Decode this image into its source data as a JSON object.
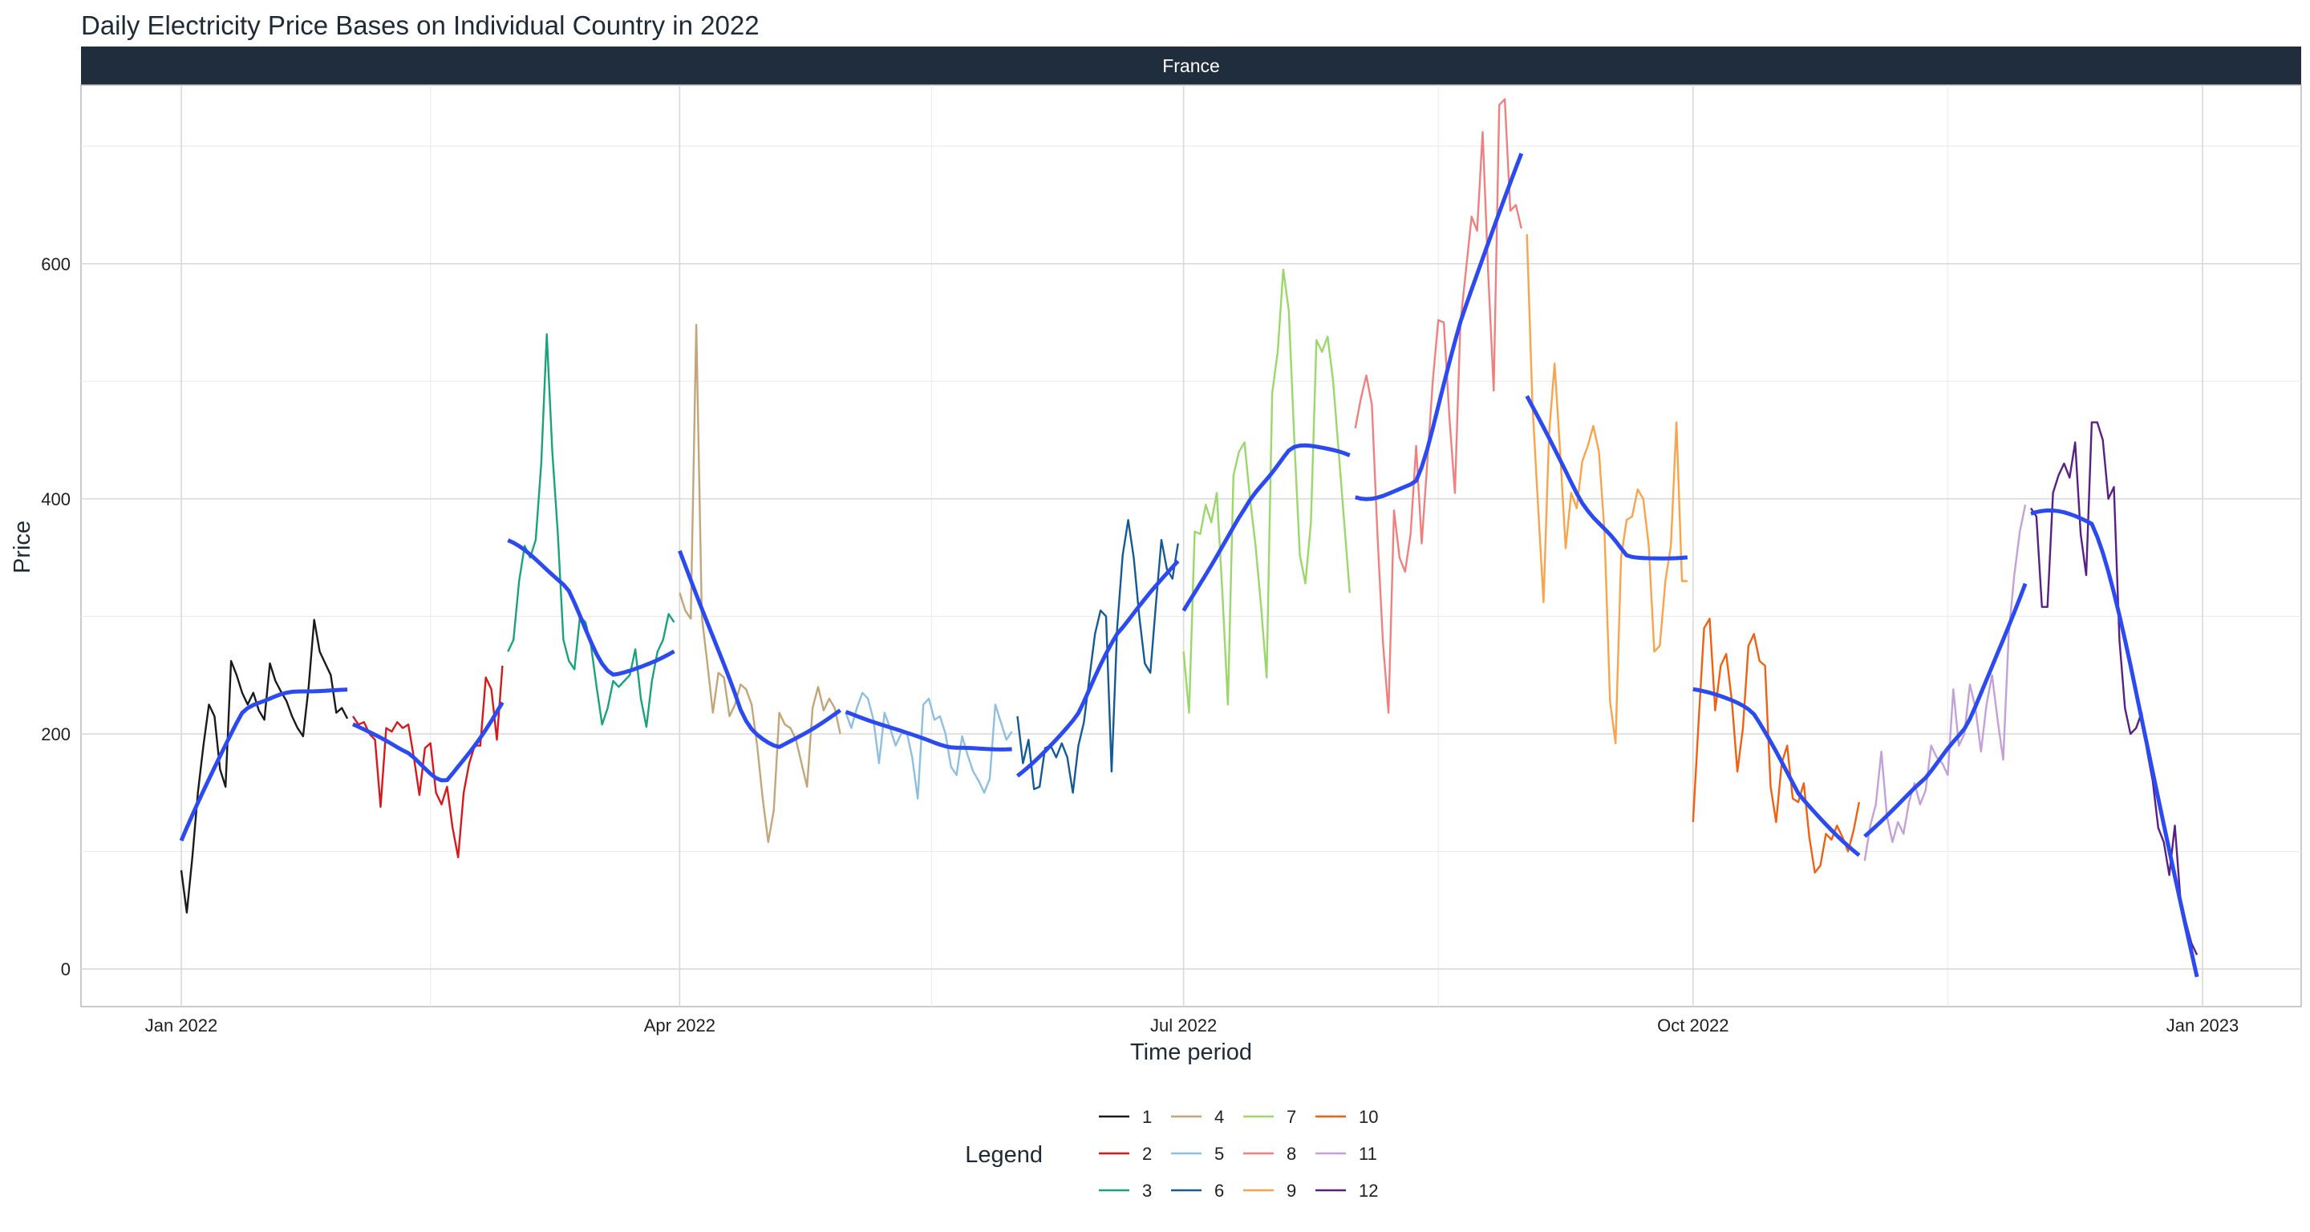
{
  "chart_data": {
    "type": "line",
    "title": "Daily Electricity Price Bases on Individual Country in 2022",
    "facet": "France",
    "xlabel": "Time period",
    "ylabel": "Price",
    "x_ticks": [
      "Jan 2022",
      "Apr 2022",
      "Jul 2022",
      "Oct 2022",
      "Jan 2023"
    ],
    "y_ticks": [
      "0",
      "200",
      "400",
      "600"
    ],
    "ylim": [
      -32,
      752
    ],
    "grid": true,
    "legend": {
      "title": "Legend",
      "position": "bottom"
    },
    "smooth_color": "#2b4bf0",
    "series": [
      {
        "name": "1",
        "color": "#1a1a1a",
        "x": [
          "2022-01-01",
          "2022-01-02",
          "2022-01-03",
          "2022-01-04",
          "2022-01-05",
          "2022-01-06",
          "2022-01-07",
          "2022-01-08",
          "2022-01-09",
          "2022-01-10",
          "2022-01-11",
          "2022-01-12",
          "2022-01-13",
          "2022-01-14",
          "2022-01-15",
          "2022-01-16",
          "2022-01-17",
          "2022-01-18",
          "2022-01-19",
          "2022-01-20",
          "2022-01-21",
          "2022-01-22",
          "2022-01-23",
          "2022-01-24",
          "2022-01-25",
          "2022-01-26",
          "2022-01-27",
          "2022-01-28",
          "2022-01-29",
          "2022-01-30",
          "2022-01-31"
        ],
        "values": [
          84,
          48,
          95,
          150,
          190,
          225,
          215,
          170,
          155,
          262,
          250,
          235,
          225,
          235,
          220,
          212,
          260,
          245,
          236,
          228,
          215,
          205,
          198,
          240,
          297,
          270,
          260,
          250,
          218,
          222,
          213
        ]
      },
      {
        "name": "2",
        "color": "#d7191c",
        "x": [
          "2022-02-01",
          "2022-02-02",
          "2022-02-03",
          "2022-02-04",
          "2022-02-05",
          "2022-02-06",
          "2022-02-07",
          "2022-02-08",
          "2022-02-09",
          "2022-02-10",
          "2022-02-11",
          "2022-02-12",
          "2022-02-13",
          "2022-02-14",
          "2022-02-15",
          "2022-02-16",
          "2022-02-17",
          "2022-02-18",
          "2022-02-19",
          "2022-02-20",
          "2022-02-21",
          "2022-02-22",
          "2022-02-23",
          "2022-02-24",
          "2022-02-25",
          "2022-02-26",
          "2022-02-27",
          "2022-02-28"
        ],
        "values": [
          215,
          208,
          210,
          200,
          195,
          138,
          205,
          202,
          210,
          205,
          208,
          180,
          148,
          188,
          192,
          150,
          140,
          155,
          120,
          95,
          150,
          175,
          190,
          190,
          248,
          238,
          195,
          258
        ]
      },
      {
        "name": "3",
        "color": "#1aa37a",
        "x": [
          "2022-03-01",
          "2022-03-02",
          "2022-03-03",
          "2022-03-04",
          "2022-03-05",
          "2022-03-06",
          "2022-03-07",
          "2022-03-08",
          "2022-03-09",
          "2022-03-10",
          "2022-03-11",
          "2022-03-12",
          "2022-03-13",
          "2022-03-14",
          "2022-03-15",
          "2022-03-16",
          "2022-03-17",
          "2022-03-18",
          "2022-03-19",
          "2022-03-20",
          "2022-03-21",
          "2022-03-22",
          "2022-03-23",
          "2022-03-24",
          "2022-03-25",
          "2022-03-26",
          "2022-03-27",
          "2022-03-28",
          "2022-03-29",
          "2022-03-30",
          "2022-03-31"
        ],
        "values": [
          270,
          280,
          330,
          360,
          350,
          365,
          430,
          540,
          440,
          370,
          280,
          262,
          255,
          300,
          295,
          275,
          240,
          208,
          222,
          245,
          240,
          245,
          250,
          272,
          230,
          206,
          245,
          270,
          280,
          302,
          295
        ]
      },
      {
        "name": "4",
        "color": "#c2a679",
        "x": [
          "2022-04-01",
          "2022-04-02",
          "2022-04-03",
          "2022-04-04",
          "2022-04-05",
          "2022-04-06",
          "2022-04-07",
          "2022-04-08",
          "2022-04-09",
          "2022-04-10",
          "2022-04-11",
          "2022-04-12",
          "2022-04-13",
          "2022-04-14",
          "2022-04-15",
          "2022-04-16",
          "2022-04-17",
          "2022-04-18",
          "2022-04-19",
          "2022-04-20",
          "2022-04-21",
          "2022-04-22",
          "2022-04-23",
          "2022-04-24",
          "2022-04-25",
          "2022-04-26",
          "2022-04-27",
          "2022-04-28",
          "2022-04-29",
          "2022-04-30"
        ],
        "values": [
          320,
          305,
          298,
          548,
          300,
          260,
          218,
          252,
          248,
          215,
          225,
          242,
          238,
          225,
          190,
          145,
          108,
          135,
          218,
          208,
          205,
          195,
          175,
          155,
          222,
          240,
          220,
          230,
          222,
          200
        ]
      },
      {
        "name": "5",
        "color": "#8fbfe0",
        "x": [
          "2022-05-01",
          "2022-05-02",
          "2022-05-03",
          "2022-05-04",
          "2022-05-05",
          "2022-05-06",
          "2022-05-07",
          "2022-05-08",
          "2022-05-09",
          "2022-05-10",
          "2022-05-11",
          "2022-05-12",
          "2022-05-13",
          "2022-05-14",
          "2022-05-15",
          "2022-05-16",
          "2022-05-17",
          "2022-05-18",
          "2022-05-19",
          "2022-05-20",
          "2022-05-21",
          "2022-05-22",
          "2022-05-23",
          "2022-05-24",
          "2022-05-25",
          "2022-05-26",
          "2022-05-27",
          "2022-05-28",
          "2022-05-29",
          "2022-05-30",
          "2022-05-31"
        ],
        "values": [
          218,
          205,
          222,
          235,
          230,
          212,
          175,
          218,
          205,
          190,
          200,
          202,
          180,
          145,
          225,
          230,
          212,
          215,
          200,
          172,
          165,
          198,
          182,
          168,
          160,
          150,
          162,
          225,
          210,
          195,
          202
        ]
      },
      {
        "name": "6",
        "color": "#145a96",
        "x": [
          "2022-06-01",
          "2022-06-02",
          "2022-06-03",
          "2022-06-04",
          "2022-06-05",
          "2022-06-06",
          "2022-06-07",
          "2022-06-08",
          "2022-06-09",
          "2022-06-10",
          "2022-06-11",
          "2022-06-12",
          "2022-06-13",
          "2022-06-14",
          "2022-06-15",
          "2022-06-16",
          "2022-06-17",
          "2022-06-18",
          "2022-06-19",
          "2022-06-20",
          "2022-06-21",
          "2022-06-22",
          "2022-06-23",
          "2022-06-24",
          "2022-06-25",
          "2022-06-26",
          "2022-06-27",
          "2022-06-28",
          "2022-06-29",
          "2022-06-30"
        ],
        "values": [
          215,
          175,
          195,
          153,
          155,
          188,
          190,
          180,
          192,
          180,
          150,
          190,
          210,
          248,
          285,
          305,
          300,
          168,
          290,
          352,
          382,
          350,
          300,
          260,
          252,
          310,
          365,
          340,
          332,
          362
        ]
      },
      {
        "name": "7",
        "color": "#9ad86a",
        "x": [
          "2022-07-01",
          "2022-07-02",
          "2022-07-03",
          "2022-07-04",
          "2022-07-05",
          "2022-07-06",
          "2022-07-07",
          "2022-07-08",
          "2022-07-09",
          "2022-07-10",
          "2022-07-11",
          "2022-07-12",
          "2022-07-13",
          "2022-07-14",
          "2022-07-15",
          "2022-07-16",
          "2022-07-17",
          "2022-07-18",
          "2022-07-19",
          "2022-07-20",
          "2022-07-21",
          "2022-07-22",
          "2022-07-23",
          "2022-07-24",
          "2022-07-25",
          "2022-07-26",
          "2022-07-27",
          "2022-07-28",
          "2022-07-29",
          "2022-07-30",
          "2022-07-31"
        ],
        "values": [
          270,
          218,
          372,
          370,
          395,
          380,
          405,
          320,
          225,
          420,
          440,
          448,
          400,
          360,
          308,
          248,
          490,
          525,
          595,
          560,
          450,
          352,
          328,
          380,
          535,
          525,
          538,
          500,
          440,
          380,
          320
        ]
      },
      {
        "name": "8",
        "color": "#f08080",
        "x": [
          "2022-08-01",
          "2022-08-02",
          "2022-08-03",
          "2022-08-04",
          "2022-08-05",
          "2022-08-06",
          "2022-08-07",
          "2022-08-08",
          "2022-08-09",
          "2022-08-10",
          "2022-08-11",
          "2022-08-12",
          "2022-08-13",
          "2022-08-14",
          "2022-08-15",
          "2022-08-16",
          "2022-08-17",
          "2022-08-18",
          "2022-08-19",
          "2022-08-20",
          "2022-08-21",
          "2022-08-22",
          "2022-08-23",
          "2022-08-24",
          "2022-08-25",
          "2022-08-26",
          "2022-08-27",
          "2022-08-28",
          "2022-08-29",
          "2022-08-30",
          "2022-08-31"
        ],
        "values": [
          460,
          485,
          505,
          480,
          370,
          278,
          218,
          390,
          350,
          338,
          370,
          445,
          362,
          430,
          500,
          552,
          550,
          470,
          405,
          550,
          595,
          640,
          628,
          712,
          592,
          492,
          735,
          740,
          645,
          650,
          630
        ]
      },
      {
        "name": "9",
        "color": "#f9a34a",
        "x": [
          "2022-09-01",
          "2022-09-02",
          "2022-09-03",
          "2022-09-04",
          "2022-09-05",
          "2022-09-06",
          "2022-09-07",
          "2022-09-08",
          "2022-09-09",
          "2022-09-10",
          "2022-09-11",
          "2022-09-12",
          "2022-09-13",
          "2022-09-14",
          "2022-09-15",
          "2022-09-16",
          "2022-09-17",
          "2022-09-18",
          "2022-09-19",
          "2022-09-20",
          "2022-09-21",
          "2022-09-22",
          "2022-09-23",
          "2022-09-24",
          "2022-09-25",
          "2022-09-26",
          "2022-09-27",
          "2022-09-28",
          "2022-09-29",
          "2022-09-30"
        ],
        "values": [
          625,
          480,
          395,
          312,
          455,
          515,
          440,
          358,
          405,
          392,
          432,
          445,
          462,
          440,
          372,
          228,
          192,
          350,
          382,
          385,
          408,
          400,
          360,
          270,
          275,
          330,
          360,
          465,
          330,
          330
        ]
      },
      {
        "name": "10",
        "color": "#f06010",
        "x": [
          "2022-10-01",
          "2022-10-02",
          "2022-10-03",
          "2022-10-04",
          "2022-10-05",
          "2022-10-06",
          "2022-10-07",
          "2022-10-08",
          "2022-10-09",
          "2022-10-10",
          "2022-10-11",
          "2022-10-12",
          "2022-10-13",
          "2022-10-14",
          "2022-10-15",
          "2022-10-16",
          "2022-10-17",
          "2022-10-18",
          "2022-10-19",
          "2022-10-20",
          "2022-10-21",
          "2022-10-22",
          "2022-10-23",
          "2022-10-24",
          "2022-10-25",
          "2022-10-26",
          "2022-10-27",
          "2022-10-28",
          "2022-10-29",
          "2022-10-30",
          "2022-10-31"
        ],
        "values": [
          125,
          210,
          290,
          298,
          220,
          258,
          268,
          228,
          168,
          205,
          275,
          285,
          262,
          258,
          155,
          125,
          175,
          190,
          145,
          142,
          158,
          112,
          82,
          88,
          115,
          110,
          122,
          112,
          100,
          118,
          142
        ]
      },
      {
        "name": "11",
        "color": "#c3a0d8",
        "x": [
          "2022-11-01",
          "2022-11-02",
          "2022-11-03",
          "2022-11-04",
          "2022-11-05",
          "2022-11-06",
          "2022-11-07",
          "2022-11-08",
          "2022-11-09",
          "2022-11-10",
          "2022-11-11",
          "2022-11-12",
          "2022-11-13",
          "2022-11-14",
          "2022-11-15",
          "2022-11-16",
          "2022-11-17",
          "2022-11-18",
          "2022-11-19",
          "2022-11-20",
          "2022-11-21",
          "2022-11-22",
          "2022-11-23",
          "2022-11-24",
          "2022-11-25",
          "2022-11-26",
          "2022-11-27",
          "2022-11-28",
          "2022-11-29",
          "2022-11-30"
        ],
        "values": [
          92,
          122,
          140,
          185,
          130,
          108,
          125,
          115,
          142,
          158,
          140,
          152,
          190,
          180,
          175,
          165,
          238,
          190,
          200,
          242,
          222,
          185,
          225,
          250,
          212,
          178,
          285,
          335,
          372,
          395
        ]
      },
      {
        "name": "12",
        "color": "#5a1f86",
        "x": [
          "2022-12-01",
          "2022-12-02",
          "2022-12-03",
          "2022-12-04",
          "2022-12-05",
          "2022-12-06",
          "2022-12-07",
          "2022-12-08",
          "2022-12-09",
          "2022-12-10",
          "2022-12-11",
          "2022-12-12",
          "2022-12-13",
          "2022-12-14",
          "2022-12-15",
          "2022-12-16",
          "2022-12-17",
          "2022-12-18",
          "2022-12-19",
          "2022-12-20",
          "2022-12-21",
          "2022-12-22",
          "2022-12-23",
          "2022-12-24",
          "2022-12-25",
          "2022-12-26",
          "2022-12-27",
          "2022-12-28",
          "2022-12-29",
          "2022-12-30",
          "2022-12-31"
        ],
        "values": [
          392,
          385,
          308,
          308,
          405,
          420,
          430,
          418,
          448,
          370,
          335,
          465,
          465,
          450,
          400,
          410,
          280,
          222,
          200,
          205,
          218,
          185,
          160,
          120,
          108,
          80,
          122,
          60,
          40,
          22,
          12
        ]
      }
    ]
  }
}
